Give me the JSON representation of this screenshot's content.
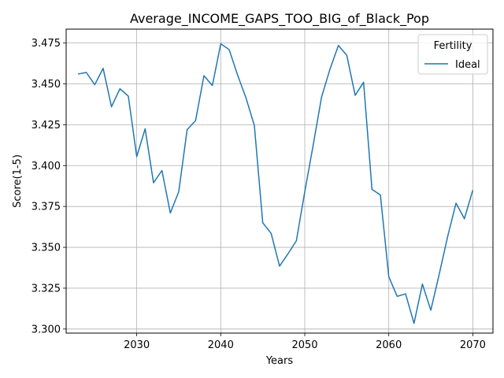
{
  "chart_data": {
    "type": "line",
    "title": "Average_INCOME_GAPS_TOO_BIG_of_Black_Pop",
    "xlabel": "Years",
    "ylabel": "Score(1-5)",
    "xlim": [
      2021.6,
      2072.4
    ],
    "ylim": [
      3.2975,
      3.4835
    ],
    "xticks": [
      2030,
      2040,
      2050,
      2060,
      2070
    ],
    "yticks": [
      3.3,
      3.325,
      3.35,
      3.375,
      3.4,
      3.425,
      3.45,
      3.475
    ],
    "ytick_labels": [
      "3.300",
      "3.325",
      "3.350",
      "3.375",
      "3.400",
      "3.425",
      "3.450",
      "3.475"
    ],
    "grid": true,
    "legend": {
      "title": "Fertility",
      "position": "top-right"
    },
    "colors": {
      "line": "#1f77b4",
      "grid": "#b0b0b0",
      "axes": "#000000"
    },
    "series": [
      {
        "name": "Ideal",
        "x": [
          2023,
          2024,
          2025,
          2026,
          2027,
          2028,
          2029,
          2030,
          2031,
          2032,
          2033,
          2034,
          2035,
          2036,
          2037,
          2038,
          2039,
          2040,
          2041,
          2042,
          2043,
          2044,
          2045,
          2046,
          2047,
          2048,
          2049,
          2050,
          2051,
          2052,
          2053,
          2054,
          2055,
          2056,
          2057,
          2058,
          2059,
          2060,
          2061,
          2062,
          2063,
          2064,
          2065,
          2066,
          2067,
          2068,
          2069,
          2070
        ],
        "values": [
          3.456,
          3.457,
          3.4495,
          3.4595,
          3.436,
          3.447,
          3.4425,
          3.4055,
          3.4225,
          3.3895,
          3.397,
          3.371,
          3.384,
          3.422,
          3.4275,
          3.455,
          3.449,
          3.4745,
          3.471,
          3.4555,
          3.4415,
          3.4245,
          3.365,
          3.3585,
          3.3385,
          3.346,
          3.354,
          3.384,
          3.4125,
          3.442,
          3.459,
          3.4735,
          3.4675,
          3.443,
          3.451,
          3.3855,
          3.382,
          3.332,
          3.32,
          3.3215,
          3.3035,
          3.3275,
          3.3115,
          3.3335,
          3.3565,
          3.377,
          3.3675,
          3.385
        ]
      }
    ]
  }
}
